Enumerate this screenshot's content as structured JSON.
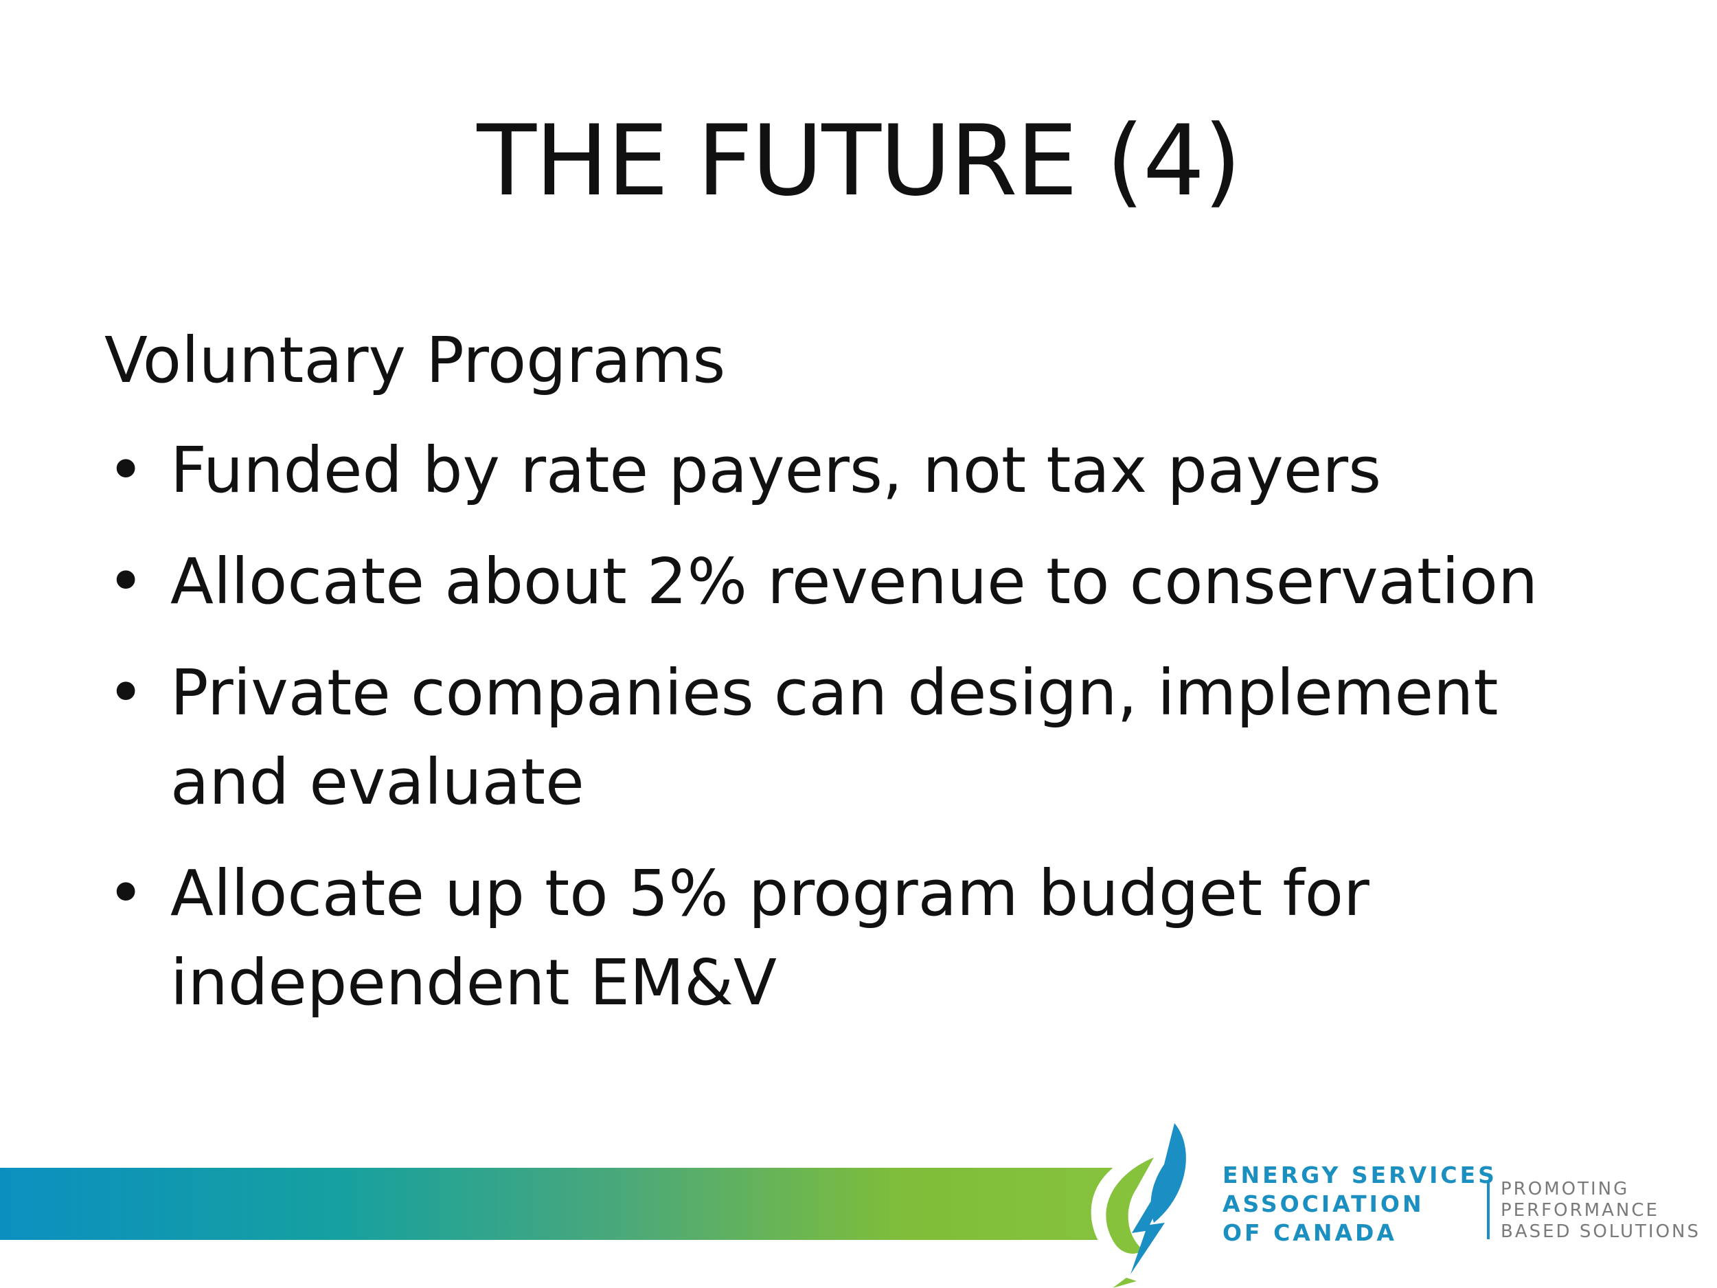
{
  "slide": {
    "title": "THE FUTURE (4)",
    "section_heading": "Voluntary Programs",
    "bullets": [
      "Funded by rate payers, not tax payers",
      "Allocate about 2% revenue to conservation",
      "Private companies can design, implement and evaluate",
      "Allocate up to 5% program budget for independent EM&V"
    ],
    "bullet_symbol": "•"
  },
  "footer": {
    "org_name_lines": [
      "ENERGY SERVICES",
      "ASSOCIATION",
      "OF CANADA"
    ],
    "tagline_lines": [
      "PROMOTING",
      "PERFORMANCE",
      "BASED SOLUTIONS"
    ],
    "logo_icon": "leaf-lightning-icon",
    "colors": {
      "band_start": "#0b8fc0",
      "band_end": "#86c23c",
      "org_text": "#1a8fc0",
      "tagline_text": "#7a7a7a"
    }
  }
}
